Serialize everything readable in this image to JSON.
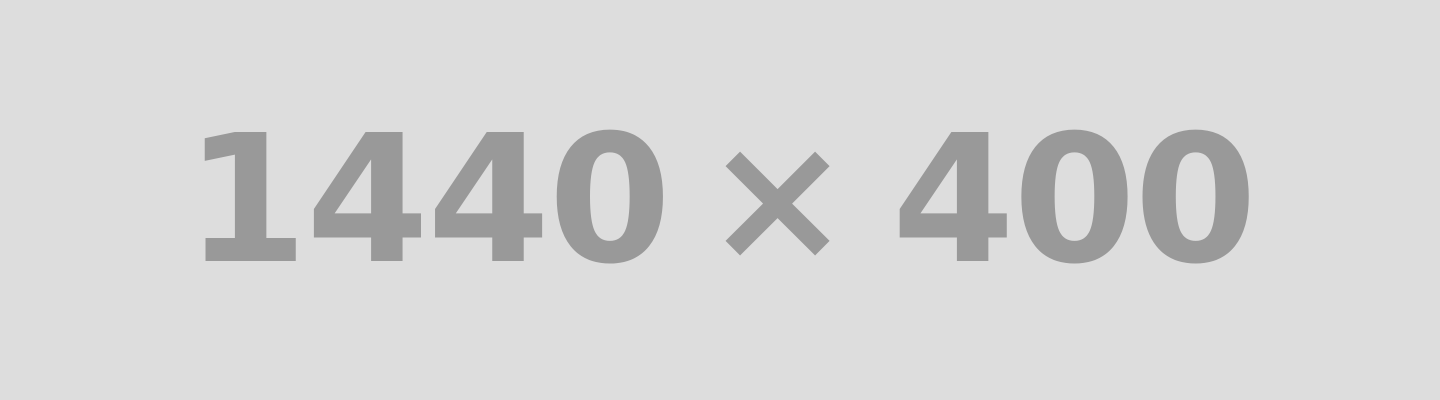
{
  "placeholder": {
    "width_text": "1440",
    "separator": "×",
    "height_text": "400",
    "background_color": "#dddddd",
    "text_color": "#999999"
  }
}
